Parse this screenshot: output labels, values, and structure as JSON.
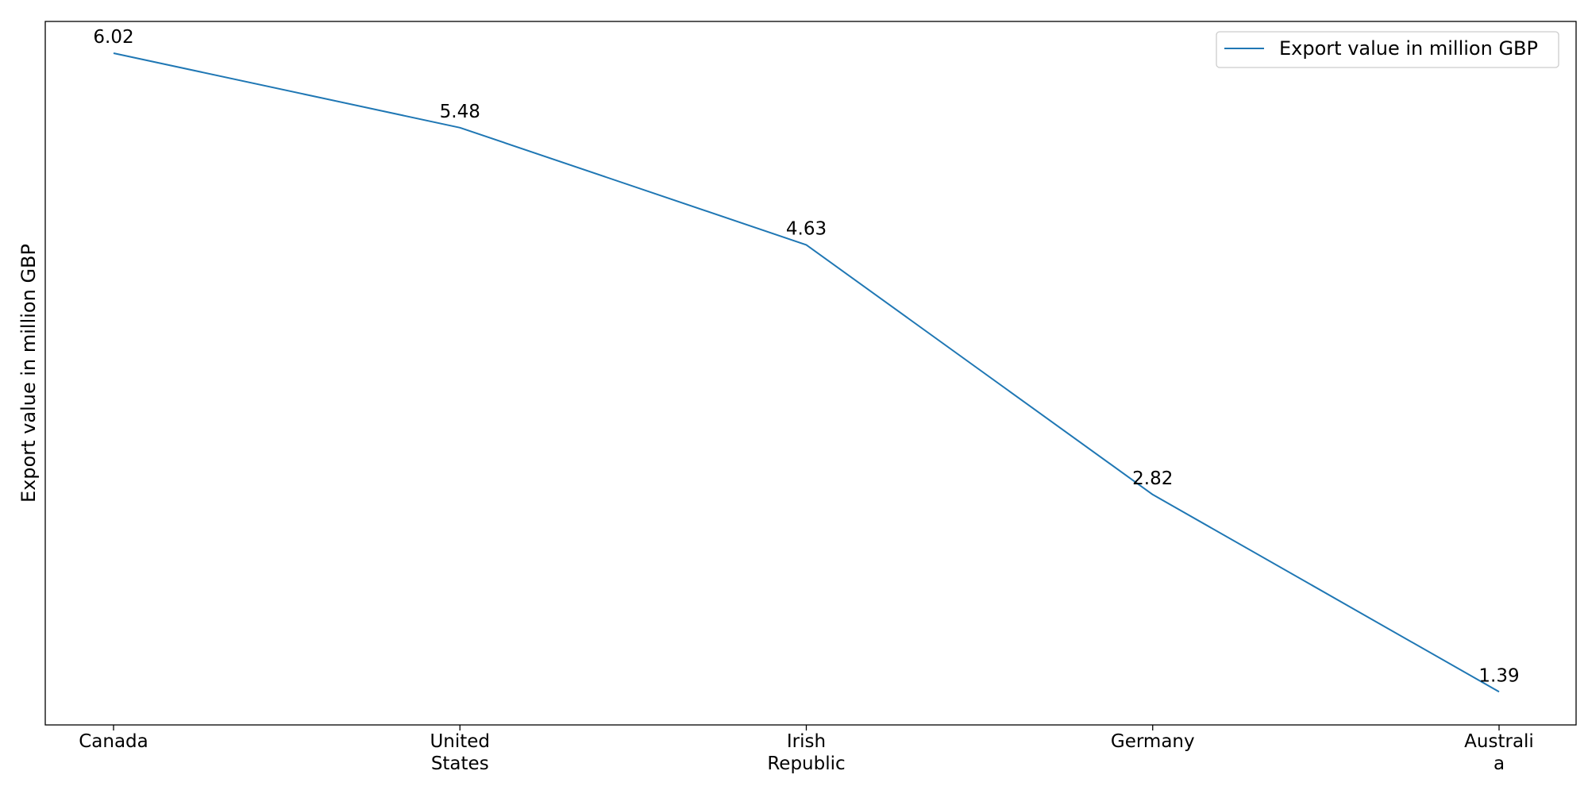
{
  "chart_data": {
    "type": "line",
    "title": "",
    "xlabel": "",
    "ylabel": "Export value in million GBP",
    "categories": [
      [
        "Canada"
      ],
      [
        "United",
        "States"
      ],
      [
        "Irish",
        "Republic"
      ],
      [
        "Germany"
      ],
      [
        "Australi",
        "a"
      ]
    ],
    "series": [
      {
        "name": "Export value in million GBP",
        "values": [
          6.02,
          5.48,
          4.63,
          2.82,
          1.39
        ],
        "color": "#1f77b4"
      }
    ],
    "ylim": [
      1.15,
      6.25
    ],
    "grid": false,
    "legend": "top-right",
    "show_y_ticks": false
  }
}
